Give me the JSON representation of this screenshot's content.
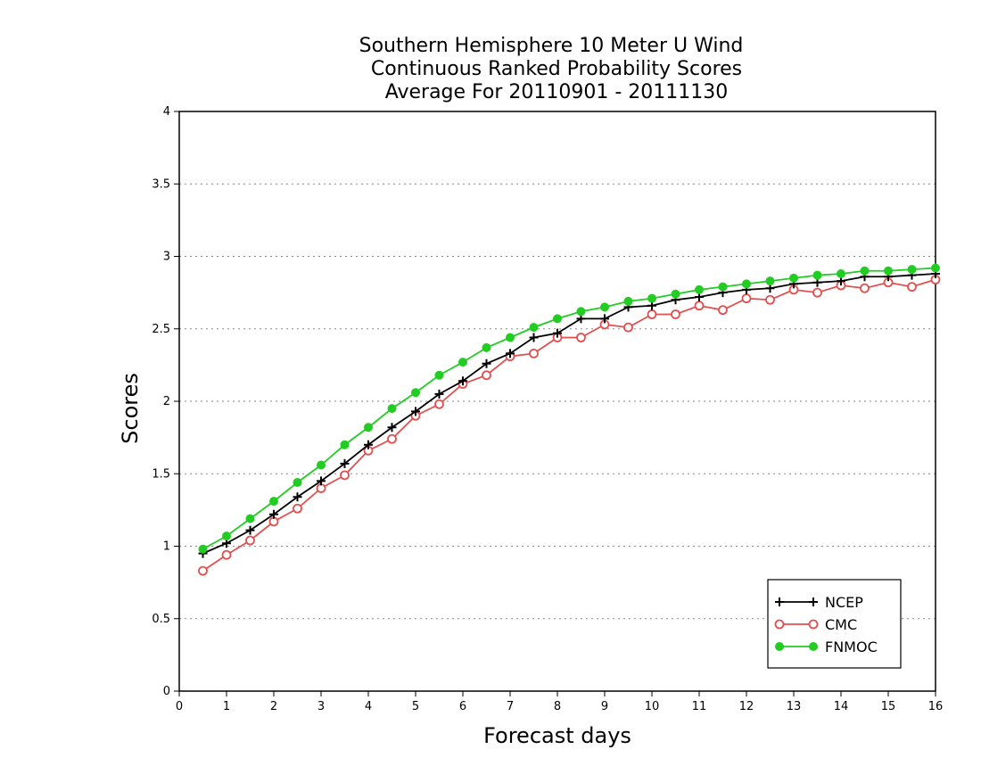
{
  "chart_data": {
    "type": "line",
    "title_lines": [
      "Southern Hemisphere 10 Meter U Wind",
      "Continuous Ranked Probability Scores",
      "Average For 20110901 - 20111130"
    ],
    "xlabel": "Forecast days",
    "ylabel": "Scores",
    "xlim": [
      0,
      16
    ],
    "ylim": [
      0,
      4
    ],
    "x_ticks": [
      0,
      1,
      2,
      3,
      4,
      5,
      6,
      7,
      8,
      9,
      10,
      11,
      12,
      13,
      14,
      15,
      16
    ],
    "x_tick_labels": [
      "0",
      "1",
      "2",
      "3",
      "4",
      "5",
      "6",
      "7",
      "8",
      "9",
      "10",
      "11",
      "12",
      "13",
      "14",
      "15",
      "16"
    ],
    "y_ticks": [
      0,
      0.5,
      1,
      1.5,
      2,
      2.5,
      3,
      3.5,
      4
    ],
    "y_tick_labels": [
      "0",
      "0.5",
      "1",
      "1.5",
      "2",
      "2.5",
      "3",
      "3.5",
      "4"
    ],
    "grid": "horizontal dotted",
    "legend_position": "bottom-right",
    "x": [
      0.5,
      1,
      1.5,
      2,
      2.5,
      3,
      3.5,
      4,
      4.5,
      5,
      5.5,
      6,
      6.5,
      7,
      7.5,
      8,
      8.5,
      9,
      9.5,
      10,
      10.5,
      11,
      11.5,
      12,
      12.5,
      13,
      13.5,
      14,
      14.5,
      15,
      15.5,
      16
    ],
    "series": [
      {
        "name": "NCEP",
        "color": "#000000",
        "marker": "plus",
        "values": [
          0.95,
          1.02,
          1.11,
          1.22,
          1.34,
          1.45,
          1.57,
          1.7,
          1.82,
          1.93,
          2.05,
          2.14,
          2.26,
          2.33,
          2.44,
          2.47,
          2.57,
          2.57,
          2.65,
          2.66,
          2.7,
          2.72,
          2.75,
          2.77,
          2.78,
          2.81,
          2.82,
          2.83,
          2.86,
          2.86,
          2.87,
          2.88
        ]
      },
      {
        "name": "CMC",
        "color": "#e05050",
        "marker": "open-circle",
        "values": [
          0.83,
          0.94,
          1.04,
          1.17,
          1.26,
          1.4,
          1.49,
          1.66,
          1.74,
          1.9,
          1.98,
          2.12,
          2.18,
          2.31,
          2.33,
          2.44,
          2.44,
          2.53,
          2.51,
          2.6,
          2.6,
          2.66,
          2.63,
          2.71,
          2.7,
          2.77,
          2.75,
          2.8,
          2.78,
          2.82,
          2.79,
          2.84
        ]
      },
      {
        "name": "FNMOC",
        "color": "#22cc22",
        "marker": "filled-circle",
        "values": [
          0.98,
          1.07,
          1.19,
          1.31,
          1.44,
          1.56,
          1.7,
          1.82,
          1.95,
          2.06,
          2.18,
          2.27,
          2.37,
          2.44,
          2.51,
          2.57,
          2.62,
          2.65,
          2.69,
          2.71,
          2.74,
          2.77,
          2.79,
          2.81,
          2.83,
          2.85,
          2.87,
          2.88,
          2.9,
          2.9,
          2.91,
          2.92
        ]
      }
    ]
  }
}
